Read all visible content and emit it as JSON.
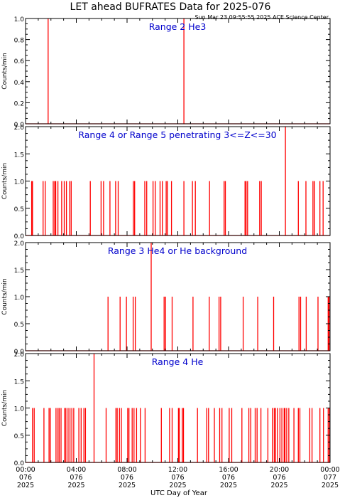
{
  "title": "LET ahead BUFRATES Data for 2025-076",
  "timestamp": "Sun Mar 23 09:55:55 2025 ACE Science Center",
  "xlabel": "UTC Day of Year",
  "colors": {
    "trace": "#ff0000",
    "panel_label": "#0000cc",
    "axes": "#000000"
  },
  "chart_data": [
    {
      "type": "line",
      "title": "Range 2 He3",
      "ylabel": "Counts/min",
      "ylim": [
        0,
        1.0
      ],
      "yticks": [
        "0.0",
        "0.2",
        "0.4",
        "0.6",
        "0.8",
        "1.0"
      ],
      "xlim": [
        0,
        24
      ],
      "series": [
        {
          "points": [
            [
              1.78,
              1.0
            ],
            [
              12.48,
              1.0
            ]
          ]
        }
      ]
    },
    {
      "type": "line",
      "title": "Range 4 or Range 5 penetrating 3<=Z<=30",
      "ylabel": "Counts/min",
      "ylim": [
        0,
        2.0
      ],
      "yticks": [
        "0.0",
        "0.5",
        "1.0",
        "1.5",
        "2.0"
      ],
      "xlim": [
        0,
        24
      ],
      "series": [
        {
          "points": [
            [
              0.48,
              1
            ],
            [
              0.55,
              1
            ],
            [
              1.38,
              1
            ],
            [
              1.55,
              1
            ],
            [
              2.18,
              1
            ],
            [
              2.3,
              1
            ],
            [
              2.38,
              1
            ],
            [
              2.55,
              1
            ],
            [
              2.85,
              1
            ],
            [
              3.05,
              1
            ],
            [
              3.22,
              1
            ],
            [
              3.48,
              1
            ],
            [
              3.6,
              1
            ],
            [
              5.1,
              1
            ],
            [
              5.95,
              1
            ],
            [
              6.15,
              1
            ],
            [
              6.65,
              1
            ],
            [
              7.1,
              1
            ],
            [
              7.3,
              1
            ],
            [
              8.5,
              1
            ],
            [
              8.6,
              1
            ],
            [
              9.4,
              1
            ],
            [
              9.55,
              1
            ],
            [
              10.05,
              1
            ],
            [
              10.22,
              1
            ],
            [
              10.6,
              1
            ],
            [
              10.78,
              1
            ],
            [
              11.08,
              1
            ],
            [
              11.18,
              1
            ],
            [
              11.5,
              1
            ],
            [
              12.48,
              1
            ],
            [
              13.15,
              1
            ],
            [
              13.38,
              1
            ],
            [
              14.5,
              1
            ],
            [
              15.65,
              1
            ],
            [
              15.75,
              1
            ],
            [
              17.3,
              1
            ],
            [
              17.38,
              1
            ],
            [
              17.5,
              1
            ],
            [
              18.45,
              1
            ],
            [
              18.58,
              1
            ],
            [
              20.48,
              2
            ],
            [
              21.5,
              1
            ],
            [
              22.1,
              1
            ],
            [
              22.65,
              1
            ],
            [
              22.78,
              1
            ],
            [
              23.2,
              1
            ],
            [
              23.45,
              1
            ]
          ]
        }
      ]
    },
    {
      "type": "line",
      "title": "Range 3 He4 or He background",
      "ylabel": "Counts/min",
      "ylim": [
        0,
        2.0
      ],
      "yticks": [
        "0.0",
        "0.5",
        "1.0",
        "1.5",
        "2.0"
      ],
      "xlim": [
        0,
        24
      ],
      "series": [
        {
          "points": [
            [
              6.5,
              1
            ],
            [
              7.45,
              1
            ],
            [
              7.95,
              1
            ],
            [
              8.48,
              1
            ],
            [
              8.65,
              1
            ],
            [
              9.9,
              2
            ],
            [
              10.92,
              1
            ],
            [
              11.03,
              1
            ],
            [
              11.55,
              1
            ],
            [
              13.2,
              1
            ],
            [
              14.48,
              1
            ],
            [
              15.25,
              1
            ],
            [
              15.38,
              1
            ],
            [
              17.15,
              1
            ],
            [
              18.3,
              1
            ],
            [
              19.55,
              1
            ],
            [
              21.55,
              1
            ],
            [
              21.68,
              1
            ],
            [
              22.12,
              1
            ],
            [
              23.05,
              1
            ],
            [
              23.85,
              1
            ],
            [
              23.92,
              1
            ]
          ]
        }
      ]
    },
    {
      "type": "line",
      "title": "Range 4 He",
      "ylabel": "Counts/min",
      "ylim": [
        0,
        2.0
      ],
      "yticks": [
        "0.0",
        "0.5",
        "1.0",
        "1.5",
        "2.0"
      ],
      "xlim": [
        0,
        24
      ],
      "series": [
        {
          "points": [
            [
              0.55,
              1
            ],
            [
              0.68,
              1
            ],
            [
              1.45,
              1
            ],
            [
              1.85,
              1
            ],
            [
              1.95,
              1
            ],
            [
              2.4,
              1
            ],
            [
              2.55,
              1
            ],
            [
              2.65,
              1
            ],
            [
              2.8,
              1
            ],
            [
              3.08,
              1
            ],
            [
              3.18,
              1
            ],
            [
              3.35,
              1
            ],
            [
              3.5,
              1
            ],
            [
              3.65,
              1
            ],
            [
              3.8,
              1
            ],
            [
              4.2,
              1
            ],
            [
              4.38,
              1
            ],
            [
              4.6,
              1
            ],
            [
              4.72,
              1
            ],
            [
              5.4,
              2
            ],
            [
              6.35,
              1
            ],
            [
              7.12,
              1
            ],
            [
              7.22,
              1
            ],
            [
              7.4,
              1
            ],
            [
              7.55,
              1
            ],
            [
              8.05,
              1
            ],
            [
              8.15,
              1
            ],
            [
              8.4,
              1
            ],
            [
              8.55,
              1
            ],
            [
              8.75,
              1
            ],
            [
              9.05,
              1
            ],
            [
              9.42,
              1
            ],
            [
              10.7,
              1
            ],
            [
              11.35,
              1
            ],
            [
              11.55,
              1
            ],
            [
              12.05,
              1
            ],
            [
              12.12,
              1
            ],
            [
              12.35,
              1
            ],
            [
              12.45,
              1
            ],
            [
              13.55,
              1
            ],
            [
              14.28,
              1
            ],
            [
              14.42,
              1
            ],
            [
              14.88,
              1
            ],
            [
              15.3,
              1
            ],
            [
              15.48,
              1
            ],
            [
              16.05,
              1
            ],
            [
              16.25,
              1
            ],
            [
              17.05,
              1
            ],
            [
              17.6,
              1
            ],
            [
              17.75,
              1
            ],
            [
              18.1,
              1
            ],
            [
              18.25,
              1
            ],
            [
              18.55,
              1
            ],
            [
              19.1,
              1
            ],
            [
              19.45,
              1
            ],
            [
              19.6,
              1
            ],
            [
              19.7,
              1
            ],
            [
              19.85,
              1
            ],
            [
              20.05,
              1
            ],
            [
              20.2,
              1
            ],
            [
              20.38,
              1
            ],
            [
              20.45,
              1
            ],
            [
              20.58,
              1
            ],
            [
              20.75,
              1
            ],
            [
              21.15,
              1
            ],
            [
              21.5,
              1
            ],
            [
              21.62,
              1
            ],
            [
              22.4,
              1
            ],
            [
              22.58,
              1
            ],
            [
              23.2,
              1
            ],
            [
              23.48,
              1
            ],
            [
              23.85,
              1
            ],
            [
              23.95,
              1
            ]
          ]
        }
      ]
    }
  ],
  "x_axis": {
    "ticks": [
      {
        "time": "00:00",
        "doy": "076",
        "year": "2025"
      },
      {
        "time": "04:00",
        "doy": "076",
        "year": "2025"
      },
      {
        "time": "08:00",
        "doy": "076",
        "year": "2025"
      },
      {
        "time": "12:00",
        "doy": "076",
        "year": "2025"
      },
      {
        "time": "16:00",
        "doy": "076",
        "year": "2025"
      },
      {
        "time": "20:00",
        "doy": "076",
        "year": "2025"
      },
      {
        "time": "00:00",
        "doy": "077",
        "year": "2025"
      }
    ]
  }
}
